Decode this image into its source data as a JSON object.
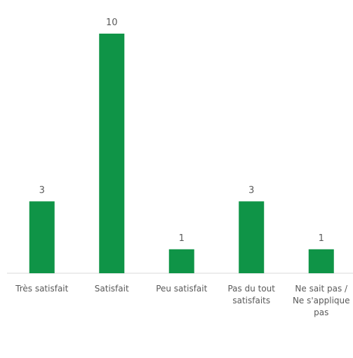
{
  "chart_data": {
    "type": "bar",
    "categories": [
      "Très satisfait",
      "Satisfait",
      "Peu satisfait",
      "Pas du tout satisfaits",
      "Ne sait pas / Ne s'applique pas"
    ],
    "values": [
      3,
      10,
      1,
      3,
      1
    ],
    "color": "#0f9447"
  }
}
